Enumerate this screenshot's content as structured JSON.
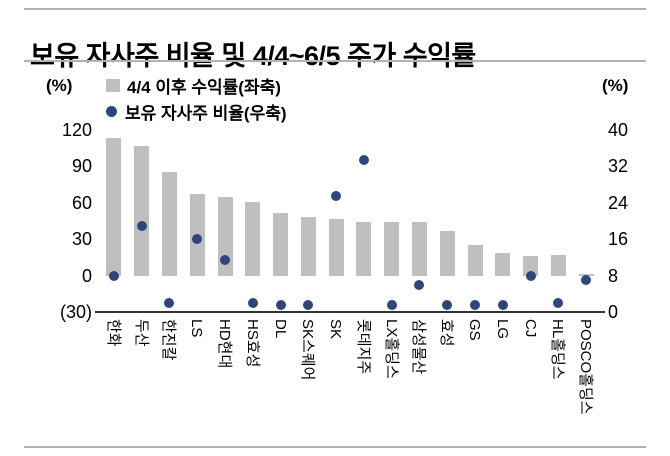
{
  "title": "보유 자사주 비율 및 4/4~6/5 주가 수익률",
  "chart_data": {
    "type": "bar",
    "subtype": "bar-left-axis + scatter-right-axis combo",
    "categories": [
      "한화",
      "두산",
      "한진칼",
      "LS",
      "HD현대",
      "HS효성",
      "DL",
      "SK스퀘어",
      "SK",
      "롯데지주",
      "LX홀딩스",
      "삼성물산",
      "효성",
      "GS",
      "LG",
      "CJ",
      "HL홀딩스",
      "POSCO홀딩스"
    ],
    "series": [
      {
        "name": "4/4 이후 수익률(좌축)",
        "type": "bar",
        "axis": "left",
        "color": "#bfbfbf",
        "values": [
          113,
          107,
          85,
          67,
          65,
          61,
          52,
          48,
          47,
          44,
          44,
          44,
          37,
          25,
          19,
          16,
          17,
          1
        ]
      },
      {
        "name": "보유 자사주 비율(우축)",
        "type": "scatter",
        "axis": "right",
        "color": "#2f4679",
        "values": [
          8,
          19,
          2,
          16,
          11.5,
          2,
          1.5,
          1.5,
          25.5,
          33.5,
          1.5,
          6,
          1.5,
          1.5,
          1.5,
          8,
          2,
          7
        ]
      }
    ],
    "left_axis": {
      "unit": "(%)",
      "min": -30,
      "max": 120,
      "ticks": [
        "120",
        "90",
        "60",
        "30",
        "0",
        "(30)"
      ],
      "tick_values": [
        120,
        90,
        60,
        30,
        0,
        -30
      ]
    },
    "right_axis": {
      "unit": "(%)",
      "min": 0,
      "max": 40,
      "ticks": [
        "40",
        "32",
        "24",
        "16",
        "8",
        "0"
      ],
      "tick_values": [
        40,
        32,
        24,
        16,
        8,
        0
      ]
    },
    "legend_position": "top-left",
    "grid": false,
    "x_label_rotation_deg": 90
  }
}
